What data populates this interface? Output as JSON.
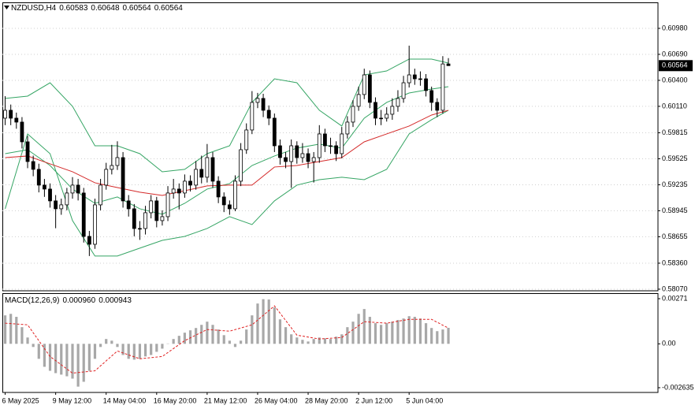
{
  "chart_data": {
    "type": "candlestick",
    "title": "NZDUSD,H4",
    "categories": [
      "6 May 2025",
      null,
      null,
      null,
      null,
      null,
      null,
      null,
      null,
      "9 May 12:00",
      null,
      null,
      null,
      null,
      null,
      null,
      null,
      null,
      "14 May 04:00",
      null,
      null,
      null,
      null,
      null,
      null,
      null,
      null,
      "16 May 20:00",
      null,
      null,
      null,
      null,
      null,
      null,
      null,
      null,
      "21 May 12:00",
      null,
      null,
      null,
      null,
      null,
      null,
      null,
      null,
      "26 May 04:00",
      null,
      null,
      null,
      null,
      null,
      null,
      null,
      null,
      "28 May 20:00",
      null,
      null,
      null,
      null,
      null,
      null,
      null,
      null,
      "2 Jun 12:00",
      null,
      null,
      null,
      null,
      null,
      null,
      null,
      null,
      "5 Jun 04:00",
      null,
      null,
      null,
      null,
      null,
      null,
      null
    ],
    "open": [
      0.59978,
      0.60066,
      0.59978,
      0.59934,
      0.59714,
      0.59494,
      0.59407,
      0.59231,
      0.59187,
      0.59055,
      0.58967,
      0.59011,
      0.59143,
      0.59231,
      0.59143,
      0.58659,
      0.58571,
      0.59011,
      0.59231,
      0.59407,
      0.5945,
      0.59538,
      0.59055,
      0.58967,
      0.58747,
      0.58747,
      0.58923,
      0.59055,
      0.58835,
      0.58879,
      0.59143,
      0.59187,
      0.59143,
      0.59275,
      0.59231,
      0.59407,
      0.59319,
      0.59538,
      0.59275,
      0.59099,
      0.59011,
      0.58967,
      0.59275,
      0.59626,
      0.59846,
      0.60154,
      0.60198,
      0.60066,
      0.59978,
      0.5967,
      0.59538,
      0.59494,
      0.5967,
      0.59538,
      0.59582,
      0.59494,
      0.59538,
      0.59802,
      0.5967,
      0.5967,
      0.59582,
      0.59802,
      0.59934,
      0.6011,
      0.60242,
      0.60461,
      0.60154,
      0.59978,
      0.59978,
      0.60022,
      0.6011,
      0.60198,
      0.60373,
      0.60461,
      0.60417,
      0.60417,
      0.60286,
      0.60154,
      0.60066,
      0.60583
    ],
    "high": [
      0.60224,
      0.6013,
      0.6004,
      0.5999,
      0.5978,
      0.5956,
      0.5947,
      0.593,
      0.5925,
      0.5912,
      0.5908,
      0.592,
      0.5932,
      0.593,
      0.592,
      0.5872,
      0.5908,
      0.593,
      0.5948,
      0.5968,
      0.5972,
      0.596,
      0.5912,
      0.5902,
      0.5883,
      0.59,
      0.5912,
      0.591,
      0.5895,
      0.5922,
      0.593,
      0.5925,
      0.5935,
      0.5934,
      0.595,
      0.5956,
      0.5969,
      0.596,
      0.5933,
      0.5915,
      0.5906,
      0.5934,
      0.597,
      0.5992,
      0.6028,
      0.6026,
      0.6025,
      0.6012,
      0.6003,
      0.5974,
      0.596,
      0.5974,
      0.5972,
      0.597,
      0.5964,
      0.596,
      0.599,
      0.5986,
      0.5976,
      0.5972,
      0.5988,
      0.6,
      0.6018,
      0.6033,
      0.6053,
      0.6051,
      0.6021,
      0.6007,
      0.601,
      0.602,
      0.6029,
      0.6045,
      0.60787,
      0.6053,
      0.605,
      0.6047,
      0.6033,
      0.602,
      0.6067,
      0.60648
    ],
    "low": [
      0.599,
      0.599,
      0.5986,
      0.5964,
      0.5942,
      0.5933,
      0.5915,
      0.591,
      0.5898,
      0.5875,
      0.589,
      0.5895,
      0.5908,
      0.5906,
      0.5859,
      0.5844,
      0.5852,
      0.5895,
      0.5918,
      0.5935,
      0.594,
      0.5898,
      0.5888,
      0.5866,
      0.5862,
      0.5868,
      0.5886,
      0.5876,
      0.5878,
      0.5883,
      0.5908,
      0.5896,
      0.5909,
      0.5916,
      0.5918,
      0.5925,
      0.5926,
      0.592,
      0.5903,
      0.5893,
      0.589,
      0.5894,
      0.5922,
      0.5958,
      0.598,
      0.6009,
      0.5999,
      0.599,
      0.596,
      0.5946,
      0.5942,
      0.592,
      0.5947,
      0.5948,
      0.5942,
      0.5926,
      0.5948,
      0.596,
      0.5958,
      0.595,
      0.5953,
      0.5975,
      0.5988,
      0.6006,
      0.6019,
      0.6009,
      0.599,
      0.599,
      0.5994,
      0.5996,
      0.6005,
      0.6015,
      0.6032,
      0.6035,
      0.6034,
      0.6022,
      0.6006,
      0.5999,
      0.6003,
      0.60564
    ],
    "close": [
      0.60066,
      0.59978,
      0.59934,
      0.59714,
      0.59494,
      0.59407,
      0.59231,
      0.59187,
      0.59055,
      0.58967,
      0.59011,
      0.59143,
      0.59231,
      0.59143,
      0.58659,
      0.58571,
      0.59011,
      0.59231,
      0.59407,
      0.5945,
      0.59538,
      0.59055,
      0.58967,
      0.58747,
      0.58747,
      0.58923,
      0.59055,
      0.58835,
      0.58879,
      0.59143,
      0.59187,
      0.59143,
      0.59275,
      0.59231,
      0.59407,
      0.59319,
      0.59538,
      0.59275,
      0.59099,
      0.59011,
      0.58967,
      0.59275,
      0.59626,
      0.59846,
      0.60154,
      0.60198,
      0.60066,
      0.59978,
      0.5967,
      0.59538,
      0.59494,
      0.5967,
      0.59538,
      0.59582,
      0.59494,
      0.59538,
      0.59802,
      0.5967,
      0.5967,
      0.59582,
      0.59802,
      0.59934,
      0.6011,
      0.60242,
      0.60461,
      0.60154,
      0.59978,
      0.59978,
      0.60022,
      0.6011,
      0.60198,
      0.60373,
      0.60461,
      0.60417,
      0.60417,
      0.60286,
      0.60154,
      0.60066,
      0.60583,
      0.60564
    ],
    "up_color": "#ffffff",
    "down_color": "#000000",
    "wick_color": "#000000",
    "current_price_color": "#000000",
    "ylim": [
      0.58052,
      0.6127
    ],
    "yticks": [
      {
        "value": 0.6098,
        "label": "0.60980"
      },
      {
        "value": 0.6069,
        "label": "0.60690"
      },
      {
        "value": 0.604,
        "label": "0.60400"
      },
      {
        "value": 0.6011,
        "label": "0.60110"
      },
      {
        "value": 0.59815,
        "label": "0.59815"
      },
      {
        "value": 0.59525,
        "label": "0.59525"
      },
      {
        "value": 0.59235,
        "label": "0.59235"
      },
      {
        "value": 0.58945,
        "label": "0.58945"
      },
      {
        "value": 0.58655,
        "label": "0.58655"
      },
      {
        "value": 0.5836,
        "label": "0.58360"
      },
      {
        "value": 0.5807,
        "label": "0.58070"
      }
    ],
    "grid": true,
    "overlay_x": [
      0,
      4,
      8,
      12,
      16,
      20,
      24,
      28,
      32,
      36,
      40,
      44,
      48,
      52,
      56,
      60,
      64,
      68,
      72,
      76,
      79
    ],
    "overlays": [
      {
        "color": "#35a564",
        "values": [
          0.60198,
          0.60224,
          0.60373,
          0.6011,
          0.5967,
          0.5967,
          0.59582,
          0.5938,
          0.59407,
          0.59582,
          0.5967,
          0.60154,
          0.60417,
          0.60373,
          0.60066,
          0.5989,
          0.60461,
          0.60505,
          0.60637,
          0.60637,
          0.60593
        ]
      },
      {
        "color": "#35a564",
        "values": [
          0.59582,
          0.59626,
          0.5945,
          0.59187,
          0.59028,
          0.59099,
          0.58967,
          0.58906,
          0.59028,
          0.59187,
          0.59248,
          0.5945,
          0.59556,
          0.59644,
          0.59688,
          0.59644,
          0.59978,
          0.60154,
          0.60259,
          0.60303,
          0.60329
        ]
      },
      {
        "color": "#35a564",
        "values": [
          0.58967,
          0.59802,
          0.59582,
          0.58835,
          0.5844,
          0.5844,
          0.58528,
          0.58615,
          0.58659,
          0.58747,
          0.58879,
          0.58791,
          0.59055,
          0.59231,
          0.59292,
          0.59319,
          0.59292,
          0.59407,
          0.59802,
          0.5996,
          0.60066
        ]
      },
      {
        "color": "#d42a2a",
        "values": [
          0.59538,
          0.59556,
          0.59468,
          0.5938,
          0.59257,
          0.59204,
          0.59152,
          0.59116,
          0.59169,
          0.59222,
          0.59231,
          0.59231,
          0.59433,
          0.5945,
          0.59494,
          0.59538,
          0.59714,
          0.59802,
          0.5989,
          0.60013,
          0.60066
        ]
      }
    ],
    "macd": {
      "title": "MACD(12,26,9)",
      "value_labels": [
        "0.000960",
        "0.000943"
      ],
      "ylim": [
        -0.00292,
        0.002995
      ],
      "yticks": [
        0.00271,
        {
          "value": 0,
          "label": "0.00"
        },
        -0.002635
      ],
      "histogram": {
        "color": "#a8a8a8",
        "values": [
          0.00171,
          0.0018,
          0.00162,
          0.001,
          0.00038,
          -0.00019,
          -0.0009,
          -0.00138,
          -0.00162,
          -0.00176,
          -0.00185,
          -0.00195,
          -0.00209,
          -0.00257,
          -0.00228,
          -0.00162,
          -0.0009,
          -0.00019,
          0.00029,
          0.00019,
          -0.00019,
          -0.00067,
          -0.0009,
          -0.00095,
          -0.0009,
          -0.00076,
          -0.00067,
          -0.00048,
          -0.00029,
          2e-05,
          0.00029,
          0.00048,
          0.00067,
          0.00081,
          0.00095,
          0.00114,
          0.00133,
          0.00114,
          0.00086,
          0.00052,
          0.00019,
          -0.00019,
          0.00019,
          0.00086,
          0.00171,
          0.00242,
          0.00268,
          0.00266,
          0.00219,
          0.00147,
          0.001,
          0.00057,
          0.00038,
          0.00024,
          0.00014,
          0.00029,
          0.00038,
          0.00033,
          0.00029,
          0.00043,
          0.00057,
          0.001,
          0.00133,
          0.0018,
          0.00209,
          0.00162,
          0.00124,
          0.00114,
          0.00124,
          0.00133,
          0.00143,
          0.00152,
          0.00166,
          0.00162,
          0.00152,
          0.00124,
          0.00095,
          0.00076,
          0.00086,
          0.00096
        ]
      },
      "signal": {
        "color": "#e02020",
        "values": [
          0.00124,
          0.00114,
          -0.00076,
          -0.00176,
          -0.00162,
          -0.00043,
          -0.0009,
          -0.00076,
          0.00019,
          0.00086,
          0.00076,
          0.00114,
          0.00228,
          0.00052,
          0.00029,
          0.00038,
          0.00133,
          0.00124,
          0.00147,
          0.00147,
          0.000943
        ]
      }
    }
  }
}
